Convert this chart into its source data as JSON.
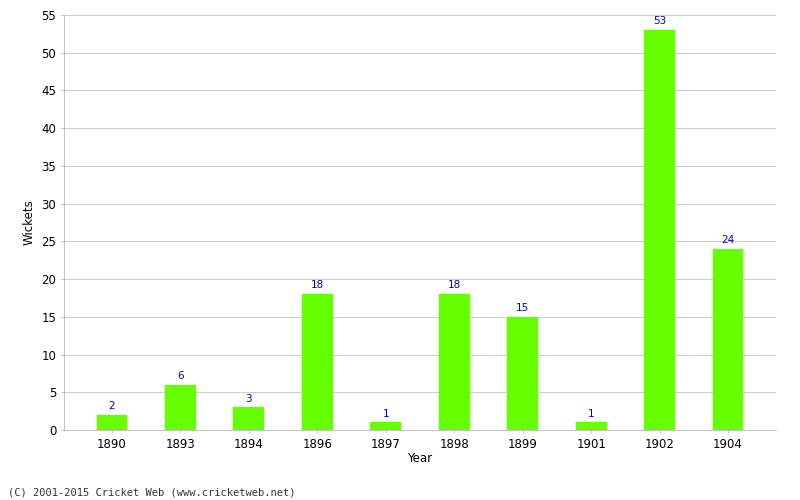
{
  "years": [
    "1890",
    "1893",
    "1894",
    "1896",
    "1897",
    "1898",
    "1899",
    "1901",
    "1902",
    "1904"
  ],
  "values": [
    2,
    6,
    3,
    18,
    1,
    18,
    15,
    1,
    53,
    24
  ],
  "bar_color": "#66ff00",
  "bar_edge_color": "#66ff00",
  "label_color": "#0000cc",
  "xlabel": "Year",
  "ylabel": "Wickets",
  "ylim": [
    0,
    55
  ],
  "yticks": [
    0,
    5,
    10,
    15,
    20,
    25,
    30,
    35,
    40,
    45,
    50,
    55
  ],
  "grid_color": "#cccccc",
  "background_color": "#ffffff",
  "footer": "(C) 2001-2015 Cricket Web (www.cricketweb.net)",
  "label_fontsize": 7.5,
  "axis_fontsize": 8.5,
  "footer_fontsize": 7.5,
  "bar_width": 0.45
}
